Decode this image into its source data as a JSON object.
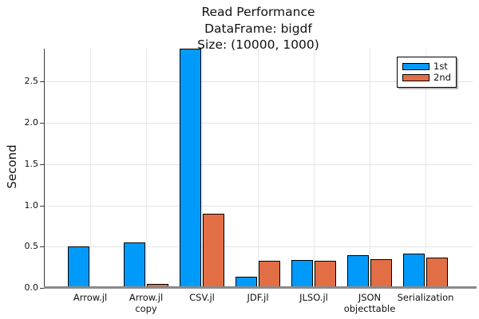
{
  "title_lines": [
    "Read Performance",
    "DataFrame: bigdf",
    "Size: (10000, 1000)"
  ],
  "y_axis_label": "Second",
  "colors": {
    "series_first": "#009AFA",
    "series_second": "#E26E46",
    "bar_stroke": "#000000",
    "grid": "#e4e4e4",
    "axis_line": "#8a8a8a",
    "spine": "#3a3a3a",
    "text": "#111111",
    "legend_background": "#ffffff"
  },
  "legend": {
    "position": "top-right",
    "items": [
      {
        "label": "1st",
        "color_key": "series_first"
      },
      {
        "label": "2nd",
        "color_key": "series_second"
      }
    ]
  },
  "chart_data": {
    "type": "bar",
    "title": "Read Performance\nDataFrame: bigdf\nSize: (10000, 1000)",
    "xlabel": "",
    "ylabel": "Second",
    "categories": [
      "Arrow.jl",
      "Arrow.jl\ncopy",
      "CSV.jl",
      "JDF.jl",
      "JLSO.jl",
      "JSON\nobjecttable",
      "Serialization"
    ],
    "series": [
      {
        "name": "1st",
        "color": "#009AFA",
        "values": [
          0.5,
          0.55,
          2.9,
          0.14,
          0.34,
          0.4,
          0.42
        ]
      },
      {
        "name": "2nd",
        "color": "#E26E46",
        "values": [
          0.01,
          0.05,
          0.9,
          0.33,
          0.33,
          0.35,
          0.37
        ]
      }
    ],
    "ylim": [
      0,
      2.9
    ],
    "yticks": [
      0.0,
      0.5,
      1.0,
      1.5,
      2.0,
      2.5
    ],
    "ytick_labels": [
      "0.0",
      "0.5",
      "1.0",
      "1.5",
      "2.0",
      "2.5"
    ],
    "grid": true,
    "legend_position": "top-right"
  }
}
